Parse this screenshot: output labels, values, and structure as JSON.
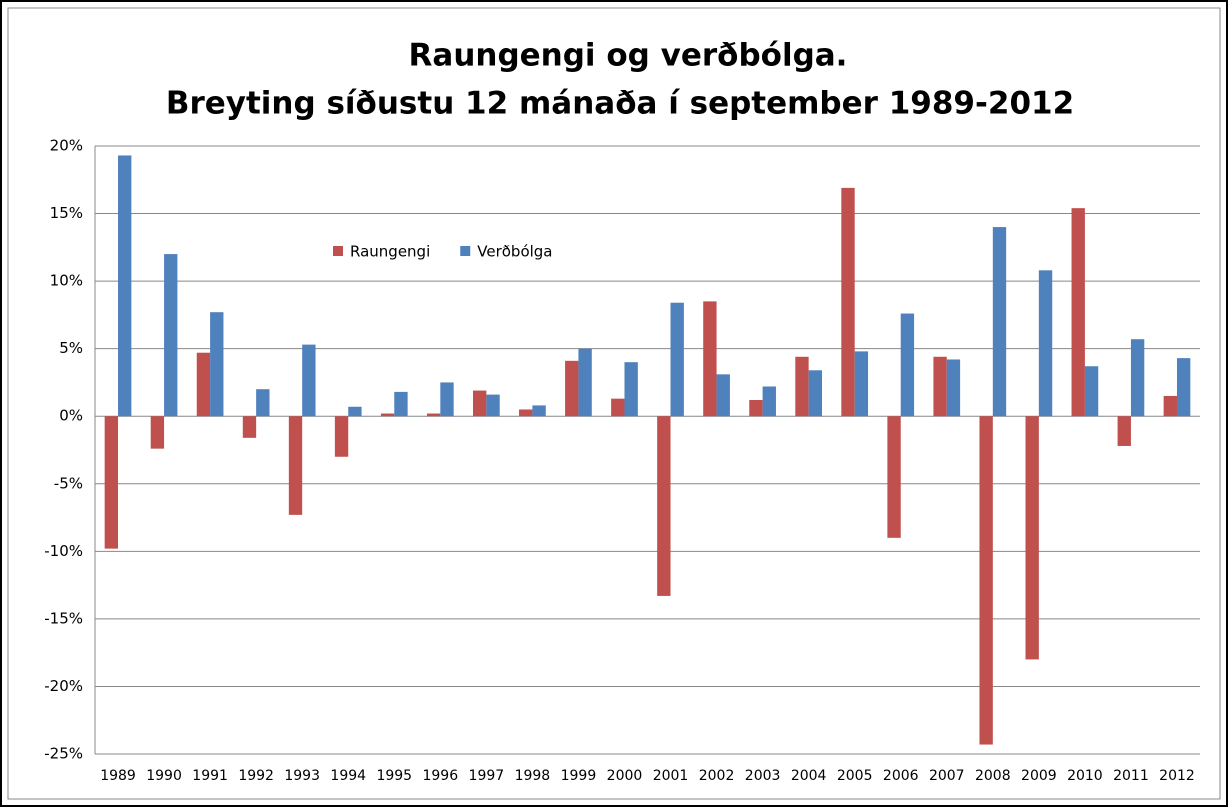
{
  "chart_data": {
    "type": "bar",
    "title": "Raungengi og verðbólga.",
    "subtitle": "Breyting síðustu 12 mánaða í september 1989-2012",
    "categories": [
      "1989",
      "1990",
      "1991",
      "1992",
      "1993",
      "1994",
      "1995",
      "1996",
      "1997",
      "1998",
      "1999",
      "2000",
      "2001",
      "2002",
      "2003",
      "2004",
      "2005",
      "2006",
      "2007",
      "2008",
      "2009",
      "2010",
      "2011",
      "2012"
    ],
    "series": [
      {
        "name": "Raungengi",
        "color": "#c0504d",
        "values": [
          -9.8,
          -2.4,
          4.7,
          -1.6,
          -7.3,
          -3.0,
          0.2,
          0.2,
          1.9,
          0.5,
          4.1,
          1.3,
          -13.3,
          8.5,
          1.2,
          4.4,
          16.9,
          -9.0,
          4.4,
          -24.3,
          -18.0,
          15.4,
          -2.2,
          1.5
        ]
      },
      {
        "name": "Verðbólga",
        "color": "#4f81bd",
        "values": [
          19.3,
          12.0,
          7.7,
          2.0,
          5.3,
          0.7,
          1.8,
          2.5,
          1.6,
          0.8,
          5.0,
          4.0,
          8.4,
          3.1,
          2.2,
          3.4,
          4.8,
          7.6,
          4.2,
          14.0,
          10.8,
          3.7,
          5.7,
          4.3
        ]
      }
    ],
    "ylim": [
      -25,
      20
    ],
    "yticks": [
      {
        "value": -25,
        "label": "-25%"
      },
      {
        "value": -20,
        "label": "-20%"
      },
      {
        "value": -15,
        "label": "-15%"
      },
      {
        "value": -10,
        "label": "-10%"
      },
      {
        "value": -5,
        "label": "-5%"
      },
      {
        "value": 0,
        "label": "0%"
      },
      {
        "value": 5,
        "label": "5%"
      },
      {
        "value": 10,
        "label": "10%"
      },
      {
        "value": 15,
        "label": "15%"
      },
      {
        "value": 20,
        "label": "20%"
      }
    ],
    "grid": true,
    "legend": "top-left"
  }
}
